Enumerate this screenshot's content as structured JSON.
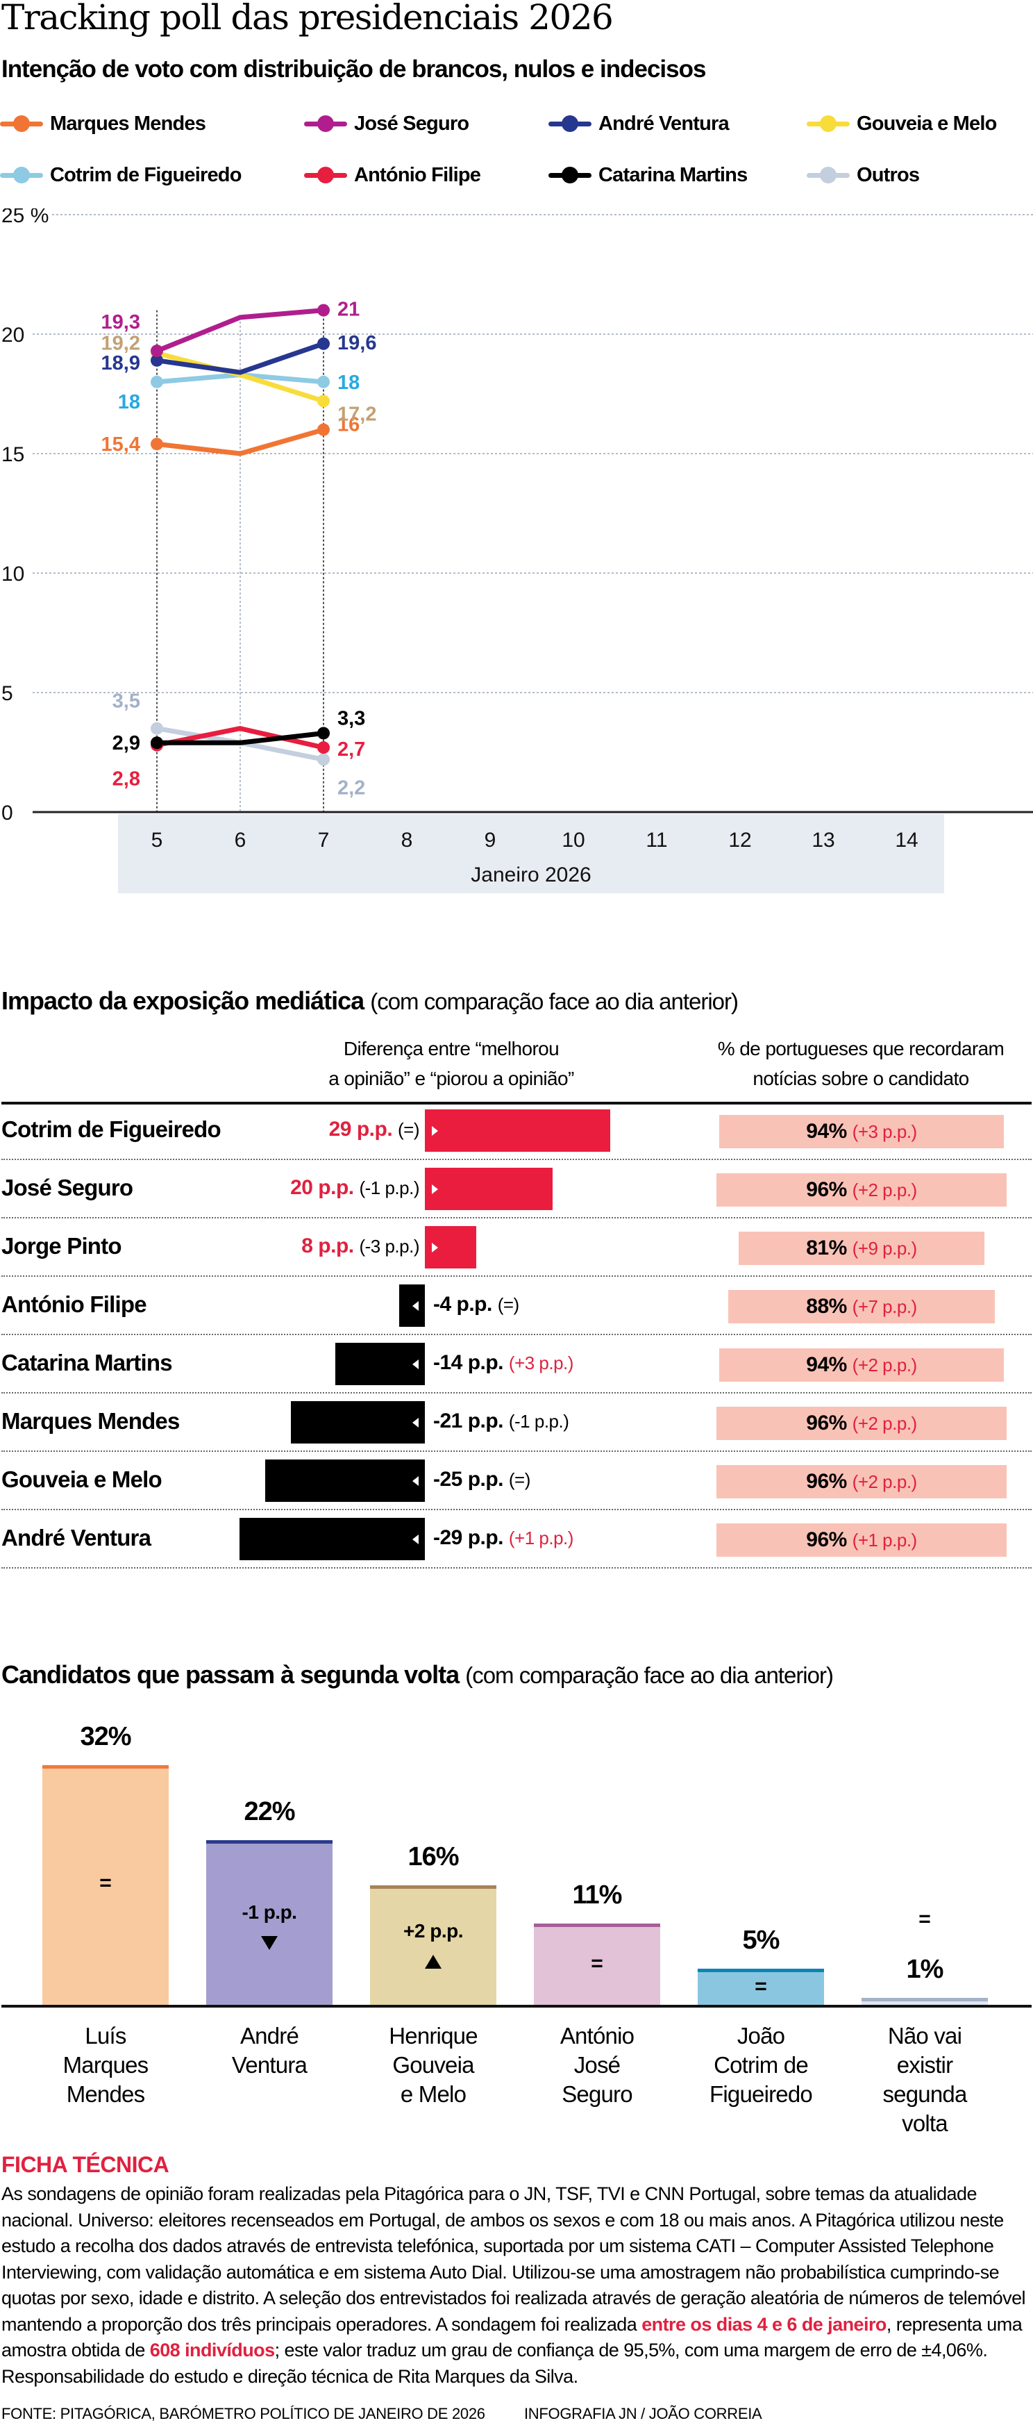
{
  "header": {
    "title": "Tracking poll das presidenciais 2026",
    "subtitle": "Intenção de voto com distribuição de brancos, nulos e indecisos"
  },
  "legend": [
    {
      "name": "Marques Mendes",
      "color": "#f07534"
    },
    {
      "name": "José Seguro",
      "color": "#b01e8e"
    },
    {
      "name": "André Ventura",
      "color": "#26378f"
    },
    {
      "name": "Gouveia e Melo",
      "color": "#f8dc3a"
    },
    {
      "name": "Cotrim de Figueiredo",
      "color": "#8ecae3"
    },
    {
      "name": "António Filipe",
      "color": "#e81e3f"
    },
    {
      "name": "Catarina Martins",
      "color": "#000000"
    },
    {
      "name": "Outros",
      "color": "#c3cfde"
    }
  ],
  "chart_data": [
    {
      "type": "line",
      "title": "Intenção de voto com distribuição de brancos, nulos e indecisos",
      "xlabel": "Janeiro 2026",
      "ylabel": "%",
      "x": [
        5,
        6,
        7,
        8,
        9,
        10,
        11,
        12,
        13,
        14
      ],
      "x_tick_labels": [
        "5",
        "6",
        "7",
        "8",
        "9",
        "10",
        "11",
        "12",
        "13",
        "14"
      ],
      "y_ticks": [
        0,
        5,
        10,
        15,
        20,
        25
      ],
      "y_tick_labels": [
        "0",
        "5",
        "10",
        "15",
        "20",
        "25 %"
      ],
      "ylim": [
        0,
        25
      ],
      "xlim": [
        3,
        15
      ],
      "grid": true,
      "legend_position": "top",
      "series": [
        {
          "name": "Marques Mendes",
          "color": "#f07534",
          "label_color": "#f07534",
          "x": [
            5,
            6,
            7
          ],
          "values": [
            15.4,
            15.0,
            16
          ],
          "start_label": "15,4",
          "end_label": "16"
        },
        {
          "name": "José Seguro",
          "color": "#b01e8e",
          "label_color": "#b01e8e",
          "x": [
            5,
            6,
            7
          ],
          "values": [
            19.3,
            20.7,
            21
          ],
          "start_label": "19,3",
          "end_label": "21"
        },
        {
          "name": "André Ventura",
          "color": "#26378f",
          "label_color": "#26378f",
          "x": [
            5,
            6,
            7
          ],
          "values": [
            18.9,
            18.4,
            19.6
          ],
          "start_label": "18,9",
          "end_label": "19,6"
        },
        {
          "name": "Gouveia e Melo",
          "color": "#f8dc3a",
          "label_color": "#c3a074",
          "x": [
            5,
            6,
            7
          ],
          "values": [
            19.2,
            18.3,
            17.2
          ],
          "start_label": "19,2",
          "end_label": "17,2"
        },
        {
          "name": "Cotrim de Figueiredo",
          "color": "#8ecae3",
          "label_color": "#27a9e1",
          "x": [
            5,
            6,
            7
          ],
          "values": [
            18,
            18.3,
            18
          ],
          "start_label": "18",
          "end_label": "18"
        },
        {
          "name": "António Filipe",
          "color": "#e81e3f",
          "label_color": "#e81e3f",
          "x": [
            5,
            6,
            7
          ],
          "values": [
            2.8,
            3.5,
            2.7
          ],
          "start_label": "2,8",
          "end_label": "2,7"
        },
        {
          "name": "Catarina Martins",
          "color": "#000000",
          "label_color": "#000000",
          "x": [
            5,
            6,
            7
          ],
          "values": [
            2.9,
            2.9,
            3.3
          ],
          "start_label": "2,9",
          "end_label": "3,3"
        },
        {
          "name": "Outros",
          "color": "#c3cfde",
          "label_color": "#a3b1c8",
          "x": [
            5,
            6,
            7
          ],
          "values": [
            3.5,
            2.9,
            2.2
          ],
          "start_label": "3,5",
          "end_label": "2,2"
        }
      ]
    },
    {
      "type": "bar",
      "title": "Impacto da exposição mediática",
      "subtitle": "(com comparação face ao dia anterior)",
      "column_headers": {
        "diff": "Diferença entre “melhorou a opinião” e “piorou a opinião”",
        "diff_line1": "Diferença entre “melhorou",
        "diff_line2": "a opinião” e “piorou a opinião”",
        "recall_line1": "% de portugueses que recordaram",
        "recall_line2": "notícias sobre o candidato"
      },
      "unit": "p.p.",
      "rows": [
        {
          "name": "Cotrim de Figueiredo",
          "diff": 29,
          "diff_label": "29 p.p.",
          "diff_change": "(=)",
          "diff_change_positive": false,
          "recall": 94,
          "recall_label": "94%",
          "recall_change": "(+3 p.p.)"
        },
        {
          "name": "José Seguro",
          "diff": 20,
          "diff_label": "20 p.p.",
          "diff_change": "(-1 p.p.)",
          "diff_change_positive": false,
          "recall": 96,
          "recall_label": "96%",
          "recall_change": "(+2 p.p.)"
        },
        {
          "name": "Jorge Pinto",
          "diff": 8,
          "diff_label": "8 p.p.",
          "diff_change": "(-3 p.p.)",
          "diff_change_positive": false,
          "recall": 81,
          "recall_label": "81%",
          "recall_change": "(+9 p.p.)"
        },
        {
          "name": "António Filipe",
          "diff": -4,
          "diff_label": "-4 p.p.",
          "diff_change": "(=)",
          "diff_change_positive": false,
          "recall": 88,
          "recall_label": "88%",
          "recall_change": "(+7 p.p.)"
        },
        {
          "name": "Catarina Martins",
          "diff": -14,
          "diff_label": "-14 p.p.",
          "diff_change": "(+3 p.p.)",
          "diff_change_positive": true,
          "recall": 94,
          "recall_label": "94%",
          "recall_change": "(+2 p.p.)"
        },
        {
          "name": "Marques Mendes",
          "diff": -21,
          "diff_label": "-21 p.p.",
          "diff_change": "(-1 p.p.)",
          "diff_change_positive": false,
          "recall": 96,
          "recall_label": "96%",
          "recall_change": "(+2 p.p.)"
        },
        {
          "name": "Gouveia e Melo",
          "diff": -25,
          "diff_label": "-25 p.p.",
          "diff_change": "(=)",
          "diff_change_positive": false,
          "recall": 96,
          "recall_label": "96%",
          "recall_change": "(+2 p.p.)"
        },
        {
          "name": "André Ventura",
          "diff": -29,
          "diff_label": "-29 p.p.",
          "diff_change": "(+1 p.p.)",
          "diff_change_positive": true,
          "recall": 96,
          "recall_label": "96%",
          "recall_change": "(+1 p.p.)"
        }
      ],
      "colors": {
        "positive": "#ea1d3f",
        "negative": "#000000",
        "recall_box": "#f9c2b6",
        "highlight": "#e0213f"
      }
    },
    {
      "type": "bar",
      "title": "Candidatos que passam à segunda volta",
      "subtitle": "(com comparação face ao dia anterior)",
      "ylim": [
        0,
        35
      ],
      "categories": [
        "Luís Marques Mendes",
        "André Ventura",
        "Henrique Gouveia e Melo",
        "António José Seguro",
        "João Cotrim de Figueiredo",
        "Não vai existir segunda volta"
      ],
      "category_lines": [
        [
          "Luís",
          "Marques",
          "Mendes"
        ],
        [
          "André",
          "Ventura"
        ],
        [
          "Henrique",
          "Gouveia",
          "e Melo"
        ],
        [
          "António",
          "José",
          "Seguro"
        ],
        [
          "João",
          "Cotrim de",
          "Figueiredo"
        ],
        [
          "Não vai",
          "existir",
          "segunda",
          "volta"
        ]
      ],
      "values": [
        32,
        22,
        16,
        11,
        5,
        1
      ],
      "value_labels": [
        "32%",
        "22%",
        "16%",
        "11%",
        "5%",
        "1%"
      ],
      "changes": [
        "=",
        "-1 p.p.",
        "+2 p.p.",
        "=",
        "=",
        "="
      ],
      "change_direction": [
        "equal",
        "down",
        "up",
        "equal",
        "equal",
        "equal"
      ],
      "fill_colors": [
        "#f9c9a0",
        "#a39ecf",
        "#e4d6a7",
        "#e2c2d6",
        "#8bc6e0",
        "#dfe6ee"
      ],
      "cap_colors": [
        "#ef7a3e",
        "#2b3a8e",
        "#a8835a",
        "#a65e98",
        "#0b85b3",
        "#a4b1c7"
      ]
    }
  ],
  "media_section": {
    "title_bold": "Impacto da exposição mediática",
    "title_light": "(com comparação face ao dia anterior)"
  },
  "second_round_section": {
    "title_bold": "Candidatos que passam à segunda volta",
    "title_light": "(com comparação face ao dia anterior)"
  },
  "ficha": {
    "title": "FICHA TÉCNICA",
    "text_1": "As sondagens de opinião foram realizadas pela Pitagórica para o JN, TSF, TVI e CNN Portugal, sobre temas da atualidade nacional. Universo: eleitores recenseados em Portugal, de ambos os sexos e com 18 ou mais anos. A Pitagórica utilizou neste estudo a recolha dos dados através de entrevista telefónica, suportada por um sistema CATI – Computer Assisted Telephone Interviewing, com validação automática e em sistema Auto Dial. Utilizou-se uma amostragem não probabilística cumprindo-se quotas por sexo, idade e distrito. A seleção dos entrevistados foi realizada através de geração aleatória de números de telemóvel mantendo a proporção dos três principais operadores. A sondagem foi realizada ",
    "highlight_1": "entre os dias 4 e 6 de janeiro",
    "text_2": ", representa uma amostra obtida de ",
    "highlight_2": "608 indivíduos",
    "text_3": "; este valor traduz um grau de confiança de 95,5%, com uma margem de erro de ±4,06%. Responsabilidade do estudo e direção técnica de Rita Marques da Silva."
  },
  "footer": {
    "source": "FONTE: PITAGÓRICA, BARÓMETRO POLÍTICO DE JANEIRO DE 2026",
    "credit": "INFOGRAFIA JN / JOÃO CORREIA"
  }
}
